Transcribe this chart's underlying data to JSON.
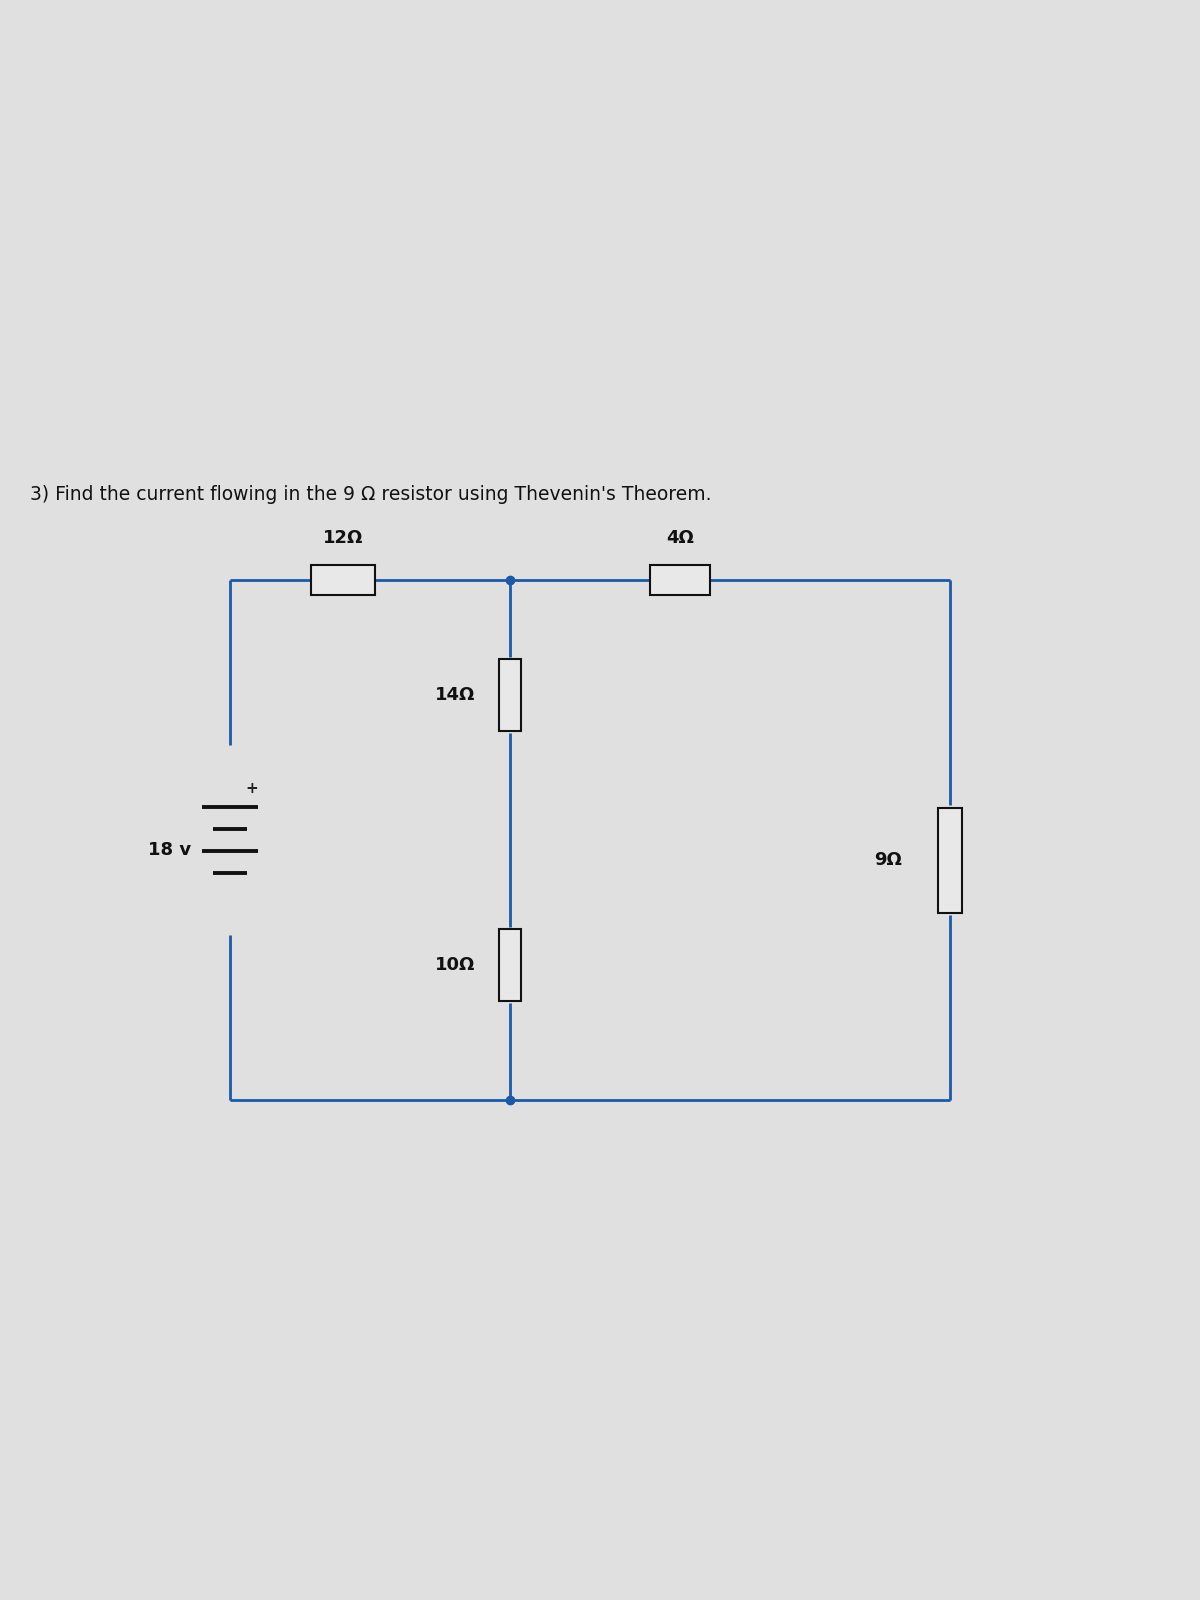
{
  "title": "3) Find the current flowing in the 9 Ω resistor using Thevenin's Theorem.",
  "title_fontsize": 13.5,
  "circuit_color": "#1a5aaa",
  "resistor_fill": "#e8e8e8",
  "resistor_edge": "#111111",
  "bg_top": "#c8c8c8",
  "bg_bottom": "#d8d8d8",
  "labels": {
    "voltage": "18 v",
    "R12": "12Ω",
    "R4": "4Ω",
    "R14": "14Ω",
    "R10": "10Ω",
    "R9": "9Ω"
  },
  "lw": 2.0,
  "label_fontsize": 13
}
